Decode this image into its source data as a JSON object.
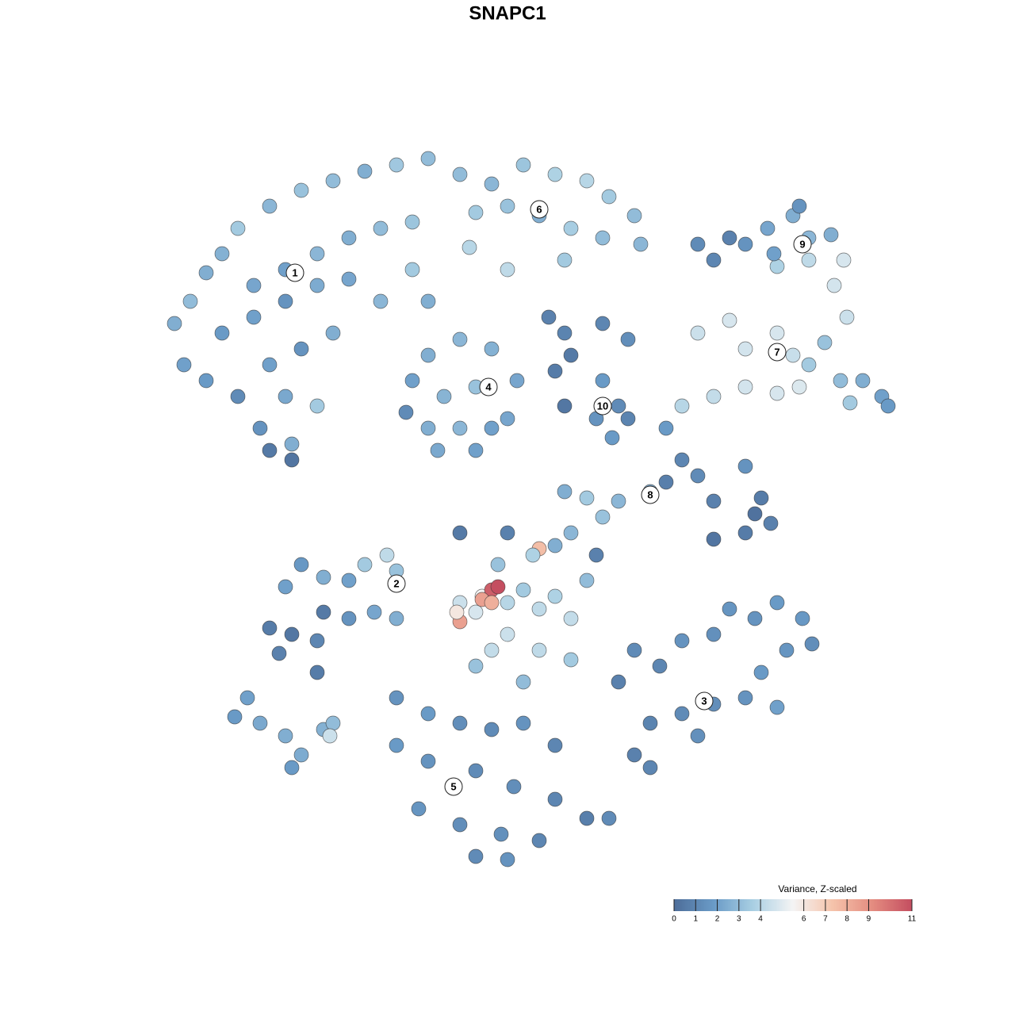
{
  "chart_data": {
    "type": "scatter",
    "title": "SNAPC1",
    "xlim": [
      -12,
      13
    ],
    "ylim": [
      -12,
      12
    ],
    "x": [
      -10.5,
      -10,
      -9.5,
      -9,
      -8.5,
      -7.5,
      -6.5,
      -5.5,
      -4.5,
      -3.5,
      -2.5,
      -8,
      -7,
      -6,
      -5,
      -4,
      -3,
      -9,
      -8,
      -7,
      -6,
      -5,
      -7.5,
      -6.5,
      -5.5,
      -7,
      -6,
      -7.8,
      -6.8,
      -7.5,
      -6.8,
      -10.2,
      -9.5,
      -8.5,
      -4,
      -3,
      -2.5,
      -1.5,
      -0.5,
      0.5,
      1.5,
      2.5,
      3.2,
      4,
      -1,
      0,
      1,
      2,
      3,
      4.2,
      1.8,
      0,
      -1.2,
      -3,
      -2.5,
      -1.5,
      -0.5,
      0.3,
      -2,
      -1,
      -3.2,
      -2.5,
      -1.5,
      -0.5,
      -2.2,
      -1,
      0,
      1.3,
      1.8,
      2,
      3,
      3.8,
      3,
      3.5,
      2.8,
      3.3,
      1.5,
      1.8,
      3.8,
      6,
      7,
      6.5,
      7.5,
      8.2,
      9,
      9.5,
      10.2,
      10.6,
      10.3,
      10.7,
      8.5,
      9.5,
      9.2,
      8.4,
      6,
      7,
      7.5,
      8.5,
      9,
      9.5,
      10,
      10.5,
      11.2,
      11.8,
      12,
      10.8,
      6.5,
      7.5,
      8.5,
      5.5,
      9.2,
      5,
      5.5,
      5,
      6,
      6.5,
      7.5,
      8,
      8.3,
      7.5,
      6.5,
      7.8,
      4.5,
      3.5,
      3,
      2.5,
      2,
      1.8,
      -7,
      -6.5,
      -5.8,
      -5,
      -4.5,
      -3.8,
      -3.5,
      -7.5,
      -6.8,
      -6,
      -7.2,
      -5.8,
      -5,
      -6,
      -4.2,
      -3.5,
      -1.5,
      -1,
      -0.8,
      -0.5,
      -0.3,
      -0.8,
      -0.5,
      -1.5,
      -1.6,
      0,
      0.5,
      1,
      1.5,
      2,
      2.5,
      0,
      1,
      2,
      -0.5,
      -1,
      0.5,
      1,
      0.8,
      1.5,
      -0.3,
      0,
      -1.5,
      2.8,
      3.5,
      4,
      4.8,
      5.5,
      6.5,
      7,
      7.8,
      8.5,
      9.3,
      9.6,
      8.8,
      8,
      7.5,
      6.5,
      5.5,
      4.5,
      4,
      6,
      4.5,
      8.5,
      -3.5,
      -2.5,
      -1.5,
      -0.5,
      0.5,
      1.5,
      -3.5,
      -2.5,
      -1,
      0.2,
      1.5,
      2.5,
      -2.8,
      -1.5,
      -0.2,
      1,
      -1,
      0,
      3.2,
      -8.6,
      -8.2,
      -7.8,
      -7,
      -6.5,
      -6.8,
      -5.8,
      -5.5,
      -5.6
    ],
    "y": [
      5.8,
      6.5,
      7.4,
      8,
      8.8,
      9.5,
      10,
      10.3,
      10.6,
      10.8,
      11,
      7,
      7.5,
      8,
      8.5,
      8.8,
      9,
      5.5,
      6,
      6.5,
      7,
      7.2,
      4.5,
      5,
      5.5,
      3.5,
      3.2,
      2.5,
      2,
      1.8,
      1.5,
      4.5,
      4,
      3.5,
      6.5,
      7.5,
      6.5,
      10.5,
      10.2,
      10.8,
      10.5,
      10.3,
      9.8,
      9.2,
      9.3,
      9.5,
      9.2,
      8.8,
      8.5,
      8.3,
      7.8,
      7.5,
      8.2,
      4,
      4.8,
      5.3,
      5,
      4,
      3.5,
      3.8,
      3,
      2.5,
      2.5,
      2.5,
      1.8,
      1.8,
      2.8,
      6,
      5.5,
      4.8,
      5.8,
      5.3,
      4,
      3.2,
      2.8,
      2.2,
      4.3,
      3.2,
      2.8,
      8.3,
      8.5,
      7.8,
      8.3,
      8.8,
      9.2,
      8.5,
      8.6,
      7.8,
      7,
      6,
      7.6,
      7.8,
      9.5,
      8,
      5.5,
      5.9,
      5,
      5.5,
      4.8,
      4.5,
      5.2,
      4,
      4,
      3.5,
      3.2,
      3.3,
      3.5,
      3.8,
      3.6,
      3.2,
      3.8,
      2.5,
      1.5,
      0.8,
      1,
      0.2,
      1.3,
      0.3,
      -0.5,
      -0.8,
      -1,
      -0.2,
      0.5,
      0.2,
      -0.3,
      0.3,
      -0.8,
      0.5,
      -2.5,
      -1.8,
      -2.2,
      -2.3,
      -1.8,
      -1.5,
      -2,
      -3.8,
      -4,
      -4.2,
      -4.6,
      -3.3,
      -3.5,
      -5.2,
      -3.3,
      -3.5,
      -3,
      -3.3,
      -2.8,
      -2.6,
      -2.5,
      -2.9,
      -3,
      -3.6,
      -3.3,
      -3,
      -2.6,
      -3.2,
      -2.8,
      -3.5,
      -2.3,
      -4,
      -4.5,
      -4.8,
      -4.5,
      -5,
      -5.5,
      -1.3,
      -1.5,
      -1.2,
      -1.8,
      -0.8,
      -0.8,
      -1.5,
      -5.5,
      -4.5,
      -5,
      -4.2,
      -4,
      -3.2,
      -3.5,
      -3,
      -3.5,
      -4.3,
      -4.5,
      -5.2,
      -6,
      -6.2,
      -6.5,
      -6.8,
      -7.8,
      -7.2,
      -8.2,
      -6.3,
      -6,
      -6.5,
      -6.8,
      -7,
      -6.8,
      -7.5,
      -7.5,
      -8,
      -8.3,
      -8.8,
      -9.2,
      -9.8,
      -9.5,
      -10,
      -10.3,
      -10.5,
      -11,
      -11.1,
      -9.8,
      -6.6,
      -6,
      -6.8,
      -7.2,
      -7.8,
      -8.2,
      -7,
      -6.8,
      -7.2
    ],
    "values": [
      2.5,
      3,
      2.5,
      2.6,
      3.5,
      2.8,
      3.2,
      3,
      2.5,
      3.4,
      3,
      2.2,
      2,
      2.8,
      2.5,
      3,
      3.3,
      1.8,
      2,
      1.5,
      2.4,
      2.2,
      2,
      1.5,
      2.5,
      2.3,
      3.5,
      1.5,
      2.5,
      0.5,
      0.3,
      2,
      1.8,
      1.2,
      2.8,
      3.5,
      2.5,
      3,
      2.8,
      3.3,
      3.8,
      4,
      3.5,
      3,
      3.5,
      3.2,
      2.5,
      3.6,
      3,
      2.8,
      3.5,
      4.2,
      4,
      2,
      2.5,
      2.8,
      2.6,
      2.2,
      2.7,
      3.2,
      1.2,
      2.5,
      2.8,
      2,
      2.3,
      2,
      2.2,
      0.8,
      0.9,
      0.5,
      1,
      1.3,
      1.8,
      1.2,
      1.5,
      1.8,
      0.6,
      0.4,
      0.9,
      1.2,
      0.8,
      1,
      1.5,
      2.2,
      2.5,
      2.8,
      2.5,
      4.8,
      4.7,
      4.5,
      3.8,
      4.2,
      1.5,
      2,
      4.5,
      4.8,
      4.7,
      4.8,
      4.4,
      3.5,
      3.2,
      3,
      2.5,
      2,
      1.8,
      3.5,
      4.3,
      4.7,
      4.8,
      4,
      4.9,
      1.8,
      1,
      0.7,
      1.2,
      0.8,
      1.5,
      0.6,
      0.8,
      0.6,
      0.3,
      0.2,
      2.5,
      2.8,
      3.2,
      3.5,
      2.8,
      2.5,
      2,
      1.7,
      2.5,
      2,
      3.5,
      4.2,
      3.2,
      0.6,
      0.4,
      1,
      0.8,
      0.5,
      1.5,
      0.6,
      2.2,
      2.5,
      4.5,
      4.8,
      5.5,
      10.5,
      11,
      8.5,
      8,
      8.5,
      6,
      4,
      3.5,
      4.2,
      3.8,
      4.3,
      3,
      4.5,
      4.2,
      3.5,
      4.3,
      3.2,
      3,
      7.5,
      3.8,
      2.5,
      3.2,
      0.8,
      0.5,
      0.8,
      0.8,
      1.2,
      1,
      1.5,
      1.4,
      1.6,
      1.5,
      1.8,
      1.7,
      1.3,
      1.6,
      1.8,
      1.5,
      1.3,
      1.2,
      0.9,
      0.8,
      1.4,
      1,
      2,
      1.5,
      1.8,
      1.3,
      1.2,
      1.5,
      1,
      1.8,
      1.5,
      1.2,
      1.3,
      1,
      0.7,
      1.6,
      1.3,
      1.4,
      1,
      1.2,
      1.5,
      1.2,
      1.8,
      2,
      2.3,
      2.5,
      2.4,
      1.8,
      2.6,
      3,
      4.5
    ],
    "clusters": [
      {
        "label": "1",
        "x": -6.7,
        "y": 7.4
      },
      {
        "label": "2",
        "x": -3.5,
        "y": -2.4
      },
      {
        "label": "3",
        "x": 6.2,
        "y": -6.1
      },
      {
        "label": "4",
        "x": -0.6,
        "y": 3.8
      },
      {
        "label": "5",
        "x": -1.7,
        "y": -8.8
      },
      {
        "label": "6",
        "x": 1,
        "y": 9.4
      },
      {
        "label": "7",
        "x": 8.5,
        "y": 4.9
      },
      {
        "label": "8",
        "x": 4.5,
        "y": 0.4
      },
      {
        "label": "9",
        "x": 9.3,
        "y": 8.3
      },
      {
        "label": "10",
        "x": 3,
        "y": 3.2
      }
    ],
    "colorbar": {
      "title": "Variance, Z-scaled",
      "lim": [
        0,
        11
      ],
      "ticks": [
        0,
        1,
        2,
        3,
        4,
        6,
        7,
        8,
        9,
        11
      ],
      "colors": [
        "#4d6d99",
        "#6a9bc7",
        "#a9cfe3",
        "#f4f4f4",
        "#f5c3ab",
        "#e48c80",
        "#c44e60"
      ]
    }
  }
}
